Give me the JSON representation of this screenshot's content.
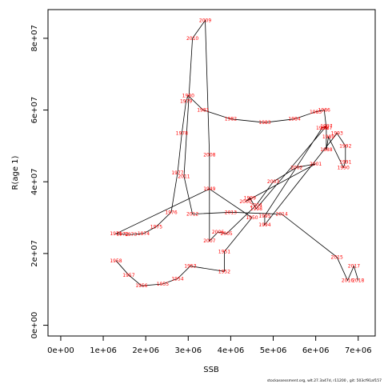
{
  "chart_data": {
    "type": "line",
    "xlabel": "SSB",
    "ylabel": "R(age 1)",
    "xlim": [
      -300000,
      7400000
    ],
    "ylim": [
      -3000000,
      88000000
    ],
    "x_ticks": [
      0,
      1000000,
      2000000,
      3000000,
      4000000,
      5000000,
      6000000,
      7000000
    ],
    "x_tick_labels": [
      "0e+00",
      "1e+06",
      "2e+06",
      "3e+06",
      "4e+06",
      "5e+06",
      "6e+06",
      "7e+06"
    ],
    "y_ticks": [
      0,
      20000000,
      40000000,
      60000000,
      80000000
    ],
    "y_tick_labels": [
      "0e+00",
      "2e+07",
      "4e+07",
      "6e+07",
      "8e+07"
    ],
    "grid": false,
    "legend": "none",
    "line_color": "#000000",
    "label_color": "#ff0000",
    "points": [
      {
        "year": "1971",
        "x": 1300000,
        "y": 25500000
      },
      {
        "year": "1972",
        "x": 1450000,
        "y": 25400000
      },
      {
        "year": "1973",
        "x": 1650000,
        "y": 25300000
      },
      {
        "year": "1974",
        "x": 1950000,
        "y": 25600000
      },
      {
        "year": "1975",
        "x": 2250000,
        "y": 27500000
      },
      {
        "year": "1976",
        "x": 2600000,
        "y": 31500000
      },
      {
        "year": "1977",
        "x": 2750000,
        "y": 42500000
      },
      {
        "year": "1978",
        "x": 2850000,
        "y": 53500000
      },
      {
        "year": "1979",
        "x": 2950000,
        "y": 62500000
      },
      {
        "year": "1980",
        "x": 3000000,
        "y": 64000000
      },
      {
        "year": "1981",
        "x": 3350000,
        "y": 60000000
      },
      {
        "year": "1982",
        "x": 4000000,
        "y": 57500000
      },
      {
        "year": "1983",
        "x": 4800000,
        "y": 56500000
      },
      {
        "year": "1984",
        "x": 5500000,
        "y": 57500000
      },
      {
        "year": "1985",
        "x": 6000000,
        "y": 59500000
      },
      {
        "year": "1986",
        "x": 6200000,
        "y": 60000000
      },
      {
        "year": "1987",
        "x": 6250000,
        "y": 55000000
      },
      {
        "year": "1988",
        "x": 6250000,
        "y": 49000000
      },
      {
        "year": "1989",
        "x": 6300000,
        "y": 52500000
      },
      {
        "year": "1990",
        "x": 6650000,
        "y": 44000000
      },
      {
        "year": "1991",
        "x": 6700000,
        "y": 45500000
      },
      {
        "year": "1992",
        "x": 6700000,
        "y": 50000000
      },
      {
        "year": "1993",
        "x": 6500000,
        "y": 53500000
      },
      {
        "year": "1994",
        "x": 4800000,
        "y": 28000000
      },
      {
        "year": "1995",
        "x": 4800000,
        "y": 30500000
      },
      {
        "year": "1996",
        "x": 6150000,
        "y": 55000000
      },
      {
        "year": "1997",
        "x": 6250000,
        "y": 55500000
      },
      {
        "year": "1998",
        "x": 4600000,
        "y": 32500000
      },
      {
        "year": "1999",
        "x": 4450000,
        "y": 35500000
      },
      {
        "year": "2000",
        "x": 4350000,
        "y": 34500000
      },
      {
        "year": "2001",
        "x": 6000000,
        "y": 45000000
      },
      {
        "year": "2002",
        "x": 5550000,
        "y": 44000000
      },
      {
        "year": "2003",
        "x": 5000000,
        "y": 40000000
      },
      {
        "year": "2004",
        "x": 4600000,
        "y": 33500000
      },
      {
        "year": "2005",
        "x": 3900000,
        "y": 25500000
      },
      {
        "year": "2006",
        "x": 3700000,
        "y": 26000000
      },
      {
        "year": "2007",
        "x": 3500000,
        "y": 23500000
      },
      {
        "year": "2008",
        "x": 3500000,
        "y": 47500000
      },
      {
        "year": "2009",
        "x": 3400000,
        "y": 85000000
      },
      {
        "year": "2010",
        "x": 3100000,
        "y": 80000000
      },
      {
        "year": "2011",
        "x": 2900000,
        "y": 41500000
      },
      {
        "year": "2012",
        "x": 3100000,
        "y": 31000000
      },
      {
        "year": "2013",
        "x": 4000000,
        "y": 31500000
      },
      {
        "year": "2014",
        "x": 5200000,
        "y": 31000000
      },
      {
        "year": "2015",
        "x": 6500000,
        "y": 19000000
      },
      {
        "year": "2016",
        "x": 6750000,
        "y": 12500000
      },
      {
        "year": "2017",
        "x": 6900000,
        "y": 16500000
      },
      {
        "year": "2018",
        "x": 7000000,
        "y": 12500000
      },
      {
        "year": "1949",
        "x": 3500000,
        "y": 38000000
      },
      {
        "year": "1950",
        "x": 4500000,
        "y": 30000000
      },
      {
        "year": "1951",
        "x": 3850000,
        "y": 20500000
      },
      {
        "year": "1952",
        "x": 3850000,
        "y": 15000000
      },
      {
        "year": "1953",
        "x": 3050000,
        "y": 16500000
      },
      {
        "year": "1954",
        "x": 2750000,
        "y": 13000000
      },
      {
        "year": "1955",
        "x": 2400000,
        "y": 11500000
      },
      {
        "year": "1956",
        "x": 1900000,
        "y": 11000000
      },
      {
        "year": "1957",
        "x": 1600000,
        "y": 14000000
      },
      {
        "year": "1958",
        "x": 1300000,
        "y": 18000000
      }
    ],
    "path_order": [
      "1958",
      "1957",
      "1956",
      "1955",
      "1954",
      "1953",
      "1952",
      "1951",
      "1950",
      "1949",
      "1971",
      "1972",
      "1973",
      "1974",
      "1975",
      "1976",
      "1977",
      "1978",
      "1979",
      "1980",
      "1981",
      "1982",
      "1983",
      "1984",
      "1985",
      "1986",
      "1987",
      "1988",
      "1989",
      "1990",
      "1991",
      "1992",
      "1993",
      "1994",
      "1995",
      "1996",
      "1997",
      "1998",
      "1999",
      "2000",
      "2001",
      "2002",
      "2003",
      "2004",
      "2005",
      "2006",
      "2007",
      "2008",
      "2009",
      "2010",
      "2011",
      "2012",
      "2013",
      "2014",
      "2015",
      "2016",
      "2017",
      "2018"
    ]
  },
  "footer": "stockassessment.org, wlt.27.3a47d, r11200 , git: 503cf91af157"
}
